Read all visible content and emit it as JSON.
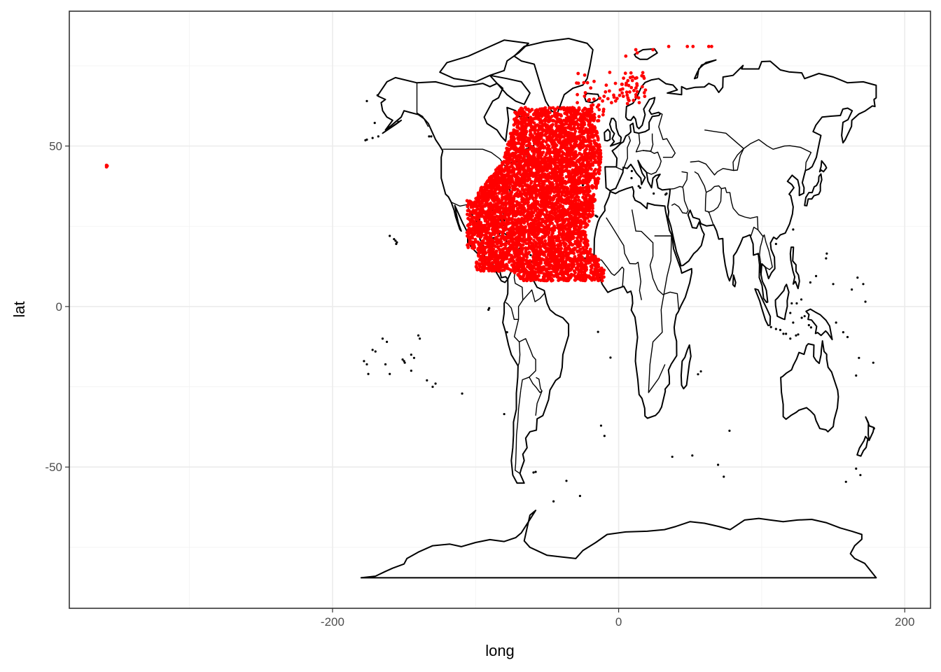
{
  "chart_data": {
    "type": "scatter",
    "title": "",
    "xlabel": "long",
    "ylabel": "lat",
    "xlim": [
      -384,
      218
    ],
    "ylim": [
      -94,
      92
    ],
    "x_ticks": [
      -200,
      0,
      200
    ],
    "x_tick_labels": [
      "-200",
      "0",
      "200"
    ],
    "y_ticks": [
      -50,
      0,
      50
    ],
    "y_tick_labels": [
      "-50",
      "0",
      "50"
    ],
    "grid": true,
    "theme": "bw",
    "colors": {
      "points": "#ff0000",
      "map_lines": "#000000",
      "panel_border": "#333333",
      "grid": "#ebebeb"
    },
    "layers": [
      {
        "name": "world map",
        "kind": "polygon outlines",
        "color": "#000000"
      },
      {
        "name": "observations",
        "kind": "points",
        "color": "#ff0000"
      }
    ],
    "point_cloud": {
      "long_range": [
        -106,
        -10
      ],
      "lat_range": [
        8,
        62
      ],
      "description_free": true
    },
    "outlier_points": [
      {
        "long": -358,
        "lat": 43.5
      },
      {
        "long": -358,
        "lat": 44.0
      },
      {
        "long": -357.5,
        "lat": 43.8
      }
    ],
    "arctic_points": [
      {
        "long": 12,
        "lat": 80
      },
      {
        "long": 24,
        "lat": 80
      },
      {
        "long": 35,
        "lat": 81
      },
      {
        "long": 48,
        "lat": 81
      },
      {
        "long": 52,
        "lat": 81
      },
      {
        "long": 63,
        "lat": 81
      },
      {
        "long": 65,
        "lat": 81
      },
      {
        "long": 13,
        "lat": 79
      },
      {
        "long": 5,
        "lat": 78
      }
    ]
  }
}
